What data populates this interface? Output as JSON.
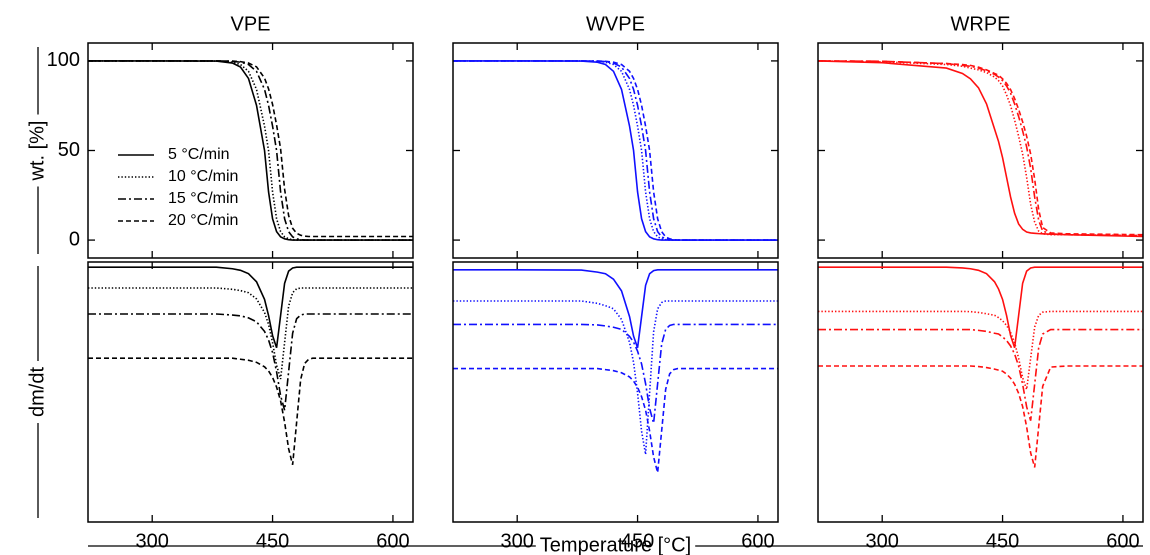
{
  "chart_data": [
    {
      "type": "line",
      "title": "VPE",
      "ylabel": "wt. [%]",
      "legend": "lower left",
      "x": [
        220,
        300,
        380,
        400,
        410,
        420,
        430,
        440,
        445,
        450,
        455,
        460,
        465,
        470,
        475,
        480,
        485,
        490,
        495,
        500,
        510,
        530,
        625
      ],
      "xlim": [
        220,
        625
      ],
      "xticks": [
        300,
        450,
        600
      ],
      "ylim": [
        -10,
        110
      ],
      "yticks": [
        0,
        50,
        100
      ],
      "series": [
        {
          "name": "5 °C/min",
          "color": "#000000",
          "linestyle": "solid",
          "values": [
            100,
            100,
            99.9,
            98.8,
            96.6,
            90.2,
            75.2,
            50,
            26.9,
            11.9,
            4.7,
            1.8,
            0.7,
            0.2,
            0,
            0,
            0,
            0,
            0,
            0,
            0,
            0,
            0
          ]
        },
        {
          "name": "10 °C/min",
          "color": "#000000",
          "linestyle": "dotted",
          "values": [
            100,
            100,
            99.9,
            99.3,
            98.0,
            94.2,
            84.1,
            63.6,
            50,
            26.9,
            11.9,
            4.7,
            1.8,
            0.7,
            0.2,
            0,
            0,
            0,
            0,
            0,
            0,
            0,
            0
          ]
        },
        {
          "name": "15 °C/min",
          "color": "#000000",
          "linestyle": "dashdot",
          "values": [
            100,
            100,
            100,
            99.8,
            99.3,
            98.0,
            94.2,
            84.1,
            75.2,
            63.6,
            50,
            26.9,
            11.9,
            4.7,
            1.8,
            0.7,
            0.2,
            0,
            0,
            0,
            0,
            0,
            0
          ]
        },
        {
          "name": "20 °C/min",
          "color": "#000000",
          "linestyle": "dashed",
          "values": [
            100,
            100,
            100,
            99.9,
            99.6,
            98.8,
            96.7,
            90.4,
            84.4,
            75.7,
            64.3,
            51,
            28.4,
            13.7,
            6.6,
            3.8,
            2.7,
            2.2,
            2,
            2,
            2,
            2,
            2
          ]
        }
      ]
    },
    {
      "type": "line",
      "title": "WVPE",
      "x": [
        220,
        300,
        380,
        400,
        410,
        420,
        430,
        440,
        445,
        450,
        455,
        460,
        465,
        470,
        475,
        480,
        485,
        490,
        495,
        500,
        510,
        530,
        625
      ],
      "xlim": [
        220,
        625
      ],
      "xticks": [
        300,
        450,
        600
      ],
      "ylim": [
        -10,
        110
      ],
      "yticks": [
        0,
        50,
        100
      ],
      "series": [
        {
          "color": "#1010ff",
          "linestyle": "solid",
          "values": [
            100,
            100,
            99.9,
            99.3,
            98.0,
            94.2,
            84.1,
            63.6,
            50,
            26.9,
            11.9,
            4.7,
            1.8,
            0.7,
            0.2,
            0,
            0,
            0,
            0,
            0,
            0,
            0,
            0
          ]
        },
        {
          "color": "#1010ff",
          "linestyle": "dotted",
          "values": [
            100,
            100,
            100,
            99.8,
            99.3,
            98.0,
            94.2,
            84.1,
            75.2,
            63.6,
            50,
            26.9,
            11.9,
            4.7,
            1.8,
            0.7,
            0.2,
            0,
            0,
            0,
            0,
            0,
            0
          ]
        },
        {
          "color": "#1010ff",
          "linestyle": "dashdot",
          "values": [
            100,
            100,
            100,
            99.9,
            99.6,
            98.8,
            96.6,
            90.2,
            84.1,
            75.2,
            63.6,
            50,
            26.9,
            11.9,
            4.7,
            1.8,
            0.7,
            0.2,
            0,
            0,
            0,
            0,
            0
          ]
        },
        {
          "color": "#1010ff",
          "linestyle": "dashed",
          "values": [
            100,
            100,
            100,
            99.9,
            99.8,
            99.3,
            98.0,
            94.2,
            90.2,
            84.1,
            75.2,
            63.6,
            50,
            26.9,
            11.9,
            4.7,
            1.8,
            0.7,
            0.2,
            0,
            0,
            0,
            0
          ]
        }
      ]
    },
    {
      "type": "line",
      "title": "WRPE",
      "x": [
        220,
        300,
        380,
        400,
        410,
        420,
        430,
        440,
        445,
        450,
        455,
        460,
        465,
        470,
        475,
        480,
        485,
        490,
        495,
        500,
        510,
        530,
        625
      ],
      "xlim": [
        220,
        625
      ],
      "xticks": [
        300,
        450,
        600
      ],
      "ylim": [
        -10,
        110
      ],
      "yticks": [
        0,
        50,
        100
      ],
      "series": [
        {
          "color": "#ff1010",
          "linestyle": "solid",
          "values": [
            100,
            99,
            96,
            93,
            90,
            85,
            76,
            62,
            55,
            46,
            35,
            24,
            15,
            9,
            6,
            4.5,
            4,
            3.8,
            3.6,
            3.5,
            3.3,
            3,
            2
          ]
        },
        {
          "color": "#ff1010",
          "linestyle": "dotted",
          "values": [
            100,
            99.5,
            98,
            97,
            96,
            95,
            93.5,
            91,
            89,
            86,
            81,
            75,
            67,
            58,
            48,
            35,
            20,
            10,
            5,
            3.5,
            3,
            3,
            2.5
          ]
        },
        {
          "color": "#ff1010",
          "linestyle": "dashdot",
          "values": [
            100,
            99.8,
            98.5,
            97.5,
            97,
            96,
            94.5,
            92.5,
            91,
            89,
            86,
            82,
            76,
            69,
            61,
            52,
            40,
            24,
            11,
            5,
            3.5,
            3,
            2.5
          ]
        },
        {
          "color": "#ff1010",
          "linestyle": "dashed",
          "values": [
            100,
            99.8,
            98.5,
            98,
            97.5,
            96.5,
            95,
            93,
            92,
            90,
            87.5,
            84,
            79,
            73,
            66,
            58,
            48,
            34,
            17,
            7,
            4,
            3.5,
            3
          ]
        }
      ]
    },
    {
      "type": "line",
      "ylabel": "dm/dt",
      "xlabel": "Temperature [°C]",
      "x": [
        220,
        300,
        380,
        400,
        410,
        420,
        430,
        440,
        445,
        450,
        455,
        460,
        465,
        470,
        475,
        480,
        485,
        490,
        495,
        500,
        510,
        530,
        625
      ],
      "xlim": [
        220,
        625
      ],
      "xticks": [
        300,
        450,
        600
      ],
      "ylim": [
        0,
        100
      ],
      "series": [
        {
          "color": "#000000",
          "linestyle": "solid",
          "values": [
            98,
            98,
            98,
            97.4,
            96.8,
            95.5,
            92.4,
            85.6,
            79.4,
            71.7,
            67,
            79.4,
            91.8,
            96.5,
            97.7,
            98,
            98,
            98,
            98,
            98,
            98,
            98,
            98
          ]
        },
        {
          "color": "#000000",
          "linestyle": "dotted",
          "values": [
            90,
            90,
            90,
            89.5,
            89,
            88.2,
            85.8,
            80.6,
            76,
            69,
            60.3,
            55,
            69,
            83,
            88.2,
            89.7,
            90,
            90,
            90,
            90,
            90,
            90,
            90
          ]
        },
        {
          "color": "#000000",
          "linestyle": "dashdot",
          "values": [
            80,
            80,
            80,
            79.6,
            79.3,
            78.5,
            77,
            73.3,
            70,
            65.2,
            57.8,
            48.6,
            43,
            57.8,
            72.6,
            78.2,
            79.6,
            80,
            80,
            80,
            80,
            80,
            80
          ]
        },
        {
          "color": "#000000",
          "linestyle": "dashed",
          "values": [
            63,
            63,
            63,
            63,
            62.6,
            62.2,
            61.4,
            59.7,
            58.1,
            55.6,
            51.9,
            46.6,
            38.4,
            28.2,
            22,
            38.4,
            54.8,
            61,
            62.6,
            63,
            63,
            63,
            63
          ]
        }
      ]
    },
    {
      "type": "line",
      "x": [
        220,
        300,
        380,
        400,
        410,
        420,
        430,
        440,
        445,
        450,
        455,
        460,
        465,
        470,
        475,
        480,
        485,
        490,
        495,
        500,
        510,
        530,
        625
      ],
      "xlim": [
        220,
        625
      ],
      "xticks": [
        300,
        450,
        600
      ],
      "ylim": [
        0,
        100
      ],
      "series": [
        {
          "color": "#1010ff",
          "linestyle": "solid",
          "values": [
            97,
            97,
            96.9,
            96.1,
            95.5,
            93.4,
            88.9,
            79,
            71.5,
            67,
            79,
            91,
            95.5,
            96.7,
            97,
            97,
            97,
            97,
            97,
            97,
            97,
            97,
            97
          ]
        },
        {
          "color": "#1010ff",
          "linestyle": "dotted",
          "values": [
            85,
            85,
            85,
            84.1,
            83.2,
            82,
            77.9,
            69.1,
            61.4,
            49.6,
            34.9,
            26,
            49.6,
            73.2,
            82,
            84.4,
            85,
            85,
            85,
            85,
            85,
            85,
            85
          ]
        },
        {
          "color": "#1010ff",
          "linestyle": "dashdot",
          "values": [
            76,
            76,
            76,
            75.8,
            75.4,
            74.9,
            74.1,
            71.4,
            69.2,
            65.7,
            60.8,
            53.2,
            43.7,
            38,
            53.2,
            68.4,
            74.1,
            75.6,
            76,
            76,
            76,
            76,
            76
          ]
        },
        {
          "color": "#1010ff",
          "linestyle": "dashed",
          "values": [
            59,
            59,
            59,
            59,
            58.6,
            58.2,
            57.4,
            55.8,
            54.2,
            51.8,
            48.2,
            43,
            35,
            25,
            19,
            35,
            51,
            57,
            58.6,
            59,
            59,
            59,
            59
          ]
        }
      ]
    },
    {
      "type": "line",
      "x": [
        220,
        300,
        380,
        400,
        410,
        420,
        430,
        440,
        445,
        450,
        455,
        460,
        465,
        470,
        475,
        480,
        485,
        490,
        495,
        500,
        510,
        530,
        625
      ],
      "xlim": [
        220,
        625
      ],
      "xticks": [
        300,
        450,
        600
      ],
      "ylim": [
        0,
        100
      ],
      "series": [
        {
          "color": "#ff1010",
          "linestyle": "solid",
          "values": [
            98,
            98,
            98,
            97.7,
            97.4,
            96.8,
            95.5,
            92.4,
            89.6,
            85.6,
            79.4,
            71.7,
            67,
            79.4,
            91.8,
            96.5,
            97.7,
            98,
            98,
            98,
            98,
            98,
            98
          ]
        },
        {
          "color": "#ff1010",
          "linestyle": "dotted",
          "values": [
            81,
            81,
            81,
            81,
            80.9,
            80.6,
            80.1,
            79.5,
            78.6,
            77.4,
            75.6,
            72.9,
            69,
            63,
            55.5,
            51,
            63,
            75,
            79.5,
            80.7,
            81,
            81,
            81
          ]
        },
        {
          "color": "#ff1010",
          "linestyle": "dashdot",
          "values": [
            74,
            74,
            74,
            74,
            74,
            73.7,
            73.3,
            72.6,
            72.3,
            71.2,
            69.8,
            67.7,
            64.6,
            60,
            53,
            44.3,
            39,
            53,
            67,
            72.3,
            74,
            74,
            74
          ]
        },
        {
          "color": "#ff1010",
          "linestyle": "dashed",
          "values": [
            60,
            60,
            60,
            60,
            60,
            59.8,
            59.4,
            58.8,
            58.4,
            58,
            56.9,
            55.3,
            53,
            49.5,
            44.4,
            36.6,
            26.6,
            21,
            36.6,
            52.2,
            59.6,
            60,
            60
          ]
        }
      ]
    }
  ]
}
